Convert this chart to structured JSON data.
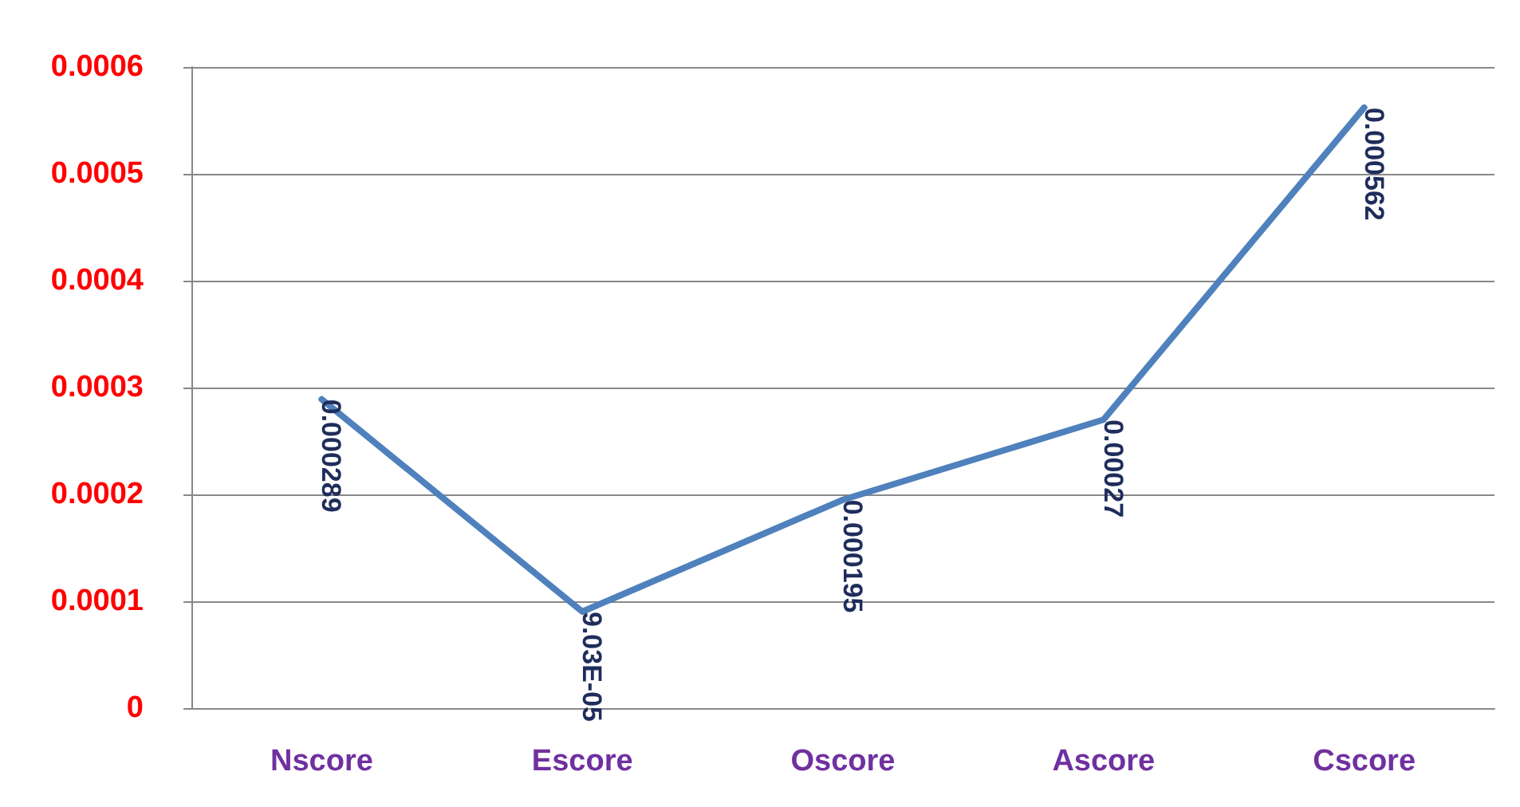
{
  "chart_data": {
    "type": "line",
    "categories": [
      "Nscore",
      "Escore",
      "Oscore",
      "Ascore",
      "Cscore"
    ],
    "series": [
      {
        "color": "#4f81bd",
        "values": [
          0.000289,
          9.03e-05,
          0.000195,
          0.00027,
          0.000562
        ],
        "value_labels": [
          "0.000289",
          "9.03E-05",
          "0.000195",
          "0.00027",
          "0.000562"
        ]
      }
    ],
    "ylim": [
      0,
      0.0006
    ],
    "yticks": [
      0,
      0.0001,
      0.0002,
      0.0003,
      0.0004,
      0.0005,
      0.0006
    ],
    "grid": "y"
  }
}
